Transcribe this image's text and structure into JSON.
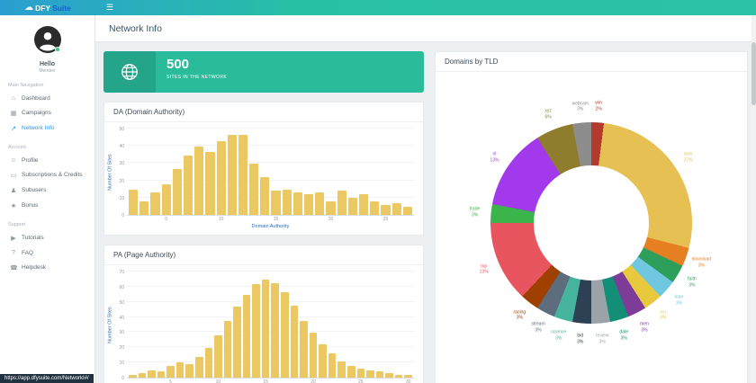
{
  "theme": {
    "teal": "#2abb9b",
    "bar_gold": "#ecc863",
    "active_blue": "#2196f3",
    "axis_blue": "#2a6db5"
  },
  "icons": {
    "cloud": "☁",
    "menu": "☰"
  },
  "topbar": {
    "brand_dfy": "DFY",
    "brand_suite": "Suite"
  },
  "page": {
    "title": "Network Info"
  },
  "statusbar": {
    "url": "https://app.dfysuite.com/NetworkI#/"
  },
  "sidebar": {
    "greeting": "Hello",
    "role": "Member",
    "sections": [
      {
        "label": "Main Navigation",
        "items": [
          {
            "label": "Dashboard",
            "icon": "⌂"
          },
          {
            "label": "Campaigns",
            "icon": "▦"
          },
          {
            "label": "Network Info",
            "icon": "↗"
          }
        ]
      },
      {
        "label": "Account",
        "items": [
          {
            "label": "Profile",
            "icon": "☺"
          },
          {
            "label": "Subscriptions & Credits",
            "icon": "▭"
          },
          {
            "label": "Subusers",
            "icon": "♟"
          },
          {
            "label": "Bonus",
            "icon": "★"
          }
        ]
      },
      {
        "label": "Support",
        "items": [
          {
            "label": "Tutorials",
            "icon": "▶"
          },
          {
            "label": "FAQ",
            "icon": "?"
          },
          {
            "label": "Helpdesk",
            "icon": "☎"
          }
        ]
      }
    ]
  },
  "stat_card": {
    "value": "500",
    "label": "SITES IN THE NETWORK"
  },
  "chart_data": [
    {
      "type": "bar",
      "title": "DA (Domain Authority)",
      "xlabel": "Domain Authority",
      "ylabel": "Number Of Sites",
      "ylim": [
        0,
        50
      ],
      "yticks": [
        0,
        10,
        20,
        30,
        40,
        50
      ],
      "xticks": [
        5,
        10,
        15,
        20,
        25
      ],
      "grid": true,
      "bar_color": "#ecc863",
      "x": [
        2,
        3,
        4,
        5,
        6,
        7,
        8,
        9,
        10,
        11,
        12,
        13,
        14,
        15,
        16,
        17,
        18,
        19,
        20,
        21,
        22,
        23,
        24,
        25,
        26,
        27
      ],
      "values": [
        15,
        8,
        13,
        18,
        27,
        35,
        40,
        37,
        43,
        47,
        47,
        30,
        22,
        14,
        15,
        13,
        12,
        13,
        8,
        14,
        10,
        12,
        8,
        6,
        7,
        5
      ]
    },
    {
      "type": "bar",
      "title": "PA (Page Authority)",
      "xlabel": "Page Authority",
      "ylabel": "Number Of Sites",
      "ylim": [
        0,
        70
      ],
      "yticks": [
        0,
        10,
        20,
        30,
        40,
        50,
        60,
        70
      ],
      "xticks": [
        5,
        10,
        15,
        20,
        25,
        30
      ],
      "grid": true,
      "bar_color": "#ecc863",
      "x": [
        1,
        2,
        3,
        4,
        5,
        6,
        7,
        8,
        9,
        10,
        11,
        12,
        13,
        14,
        15,
        16,
        17,
        18,
        19,
        20,
        21,
        22,
        23,
        24,
        25,
        26,
        27,
        28,
        29,
        30
      ],
      "values": [
        2,
        3,
        5,
        4,
        8,
        10,
        9,
        14,
        20,
        28,
        38,
        47,
        55,
        62,
        65,
        63,
        57,
        48,
        38,
        30,
        22,
        16,
        11,
        8,
        6,
        5,
        4,
        3,
        2,
        2
      ]
    },
    {
      "type": "donut",
      "title": "Domains by TLD",
      "legend_position": "outside",
      "segments": [
        {
          "label": "win",
          "value": 2,
          "color": "#b23b2e"
        },
        {
          "label": "com",
          "value": 27,
          "color": "#e6c052"
        },
        {
          "label": "download",
          "value": 3,
          "color": "#e67e22"
        },
        {
          "label": "faith",
          "value": 3,
          "color": "#2e9e5b"
        },
        {
          "label": "loan",
          "value": 3,
          "color": "#6fc7e0"
        },
        {
          "label": "icu",
          "value": 3,
          "color": "#e8c93e"
        },
        {
          "label": "men",
          "value": 3,
          "color": "#7d3c98"
        },
        {
          "label": "date",
          "value": 3,
          "color": "#148f77"
        },
        {
          "label": "review",
          "value": 3,
          "color": "#9aa3a8"
        },
        {
          "label": "bid",
          "value": 3,
          "color": "#2e4053"
        },
        {
          "label": "science",
          "value": 3,
          "color": "#45b39d"
        },
        {
          "label": "stream",
          "value": 3,
          "color": "#5d6d7e"
        },
        {
          "label": "racing",
          "value": 3,
          "color": "#a04000"
        },
        {
          "label": "top",
          "value": 13,
          "color": "#e8555f"
        },
        {
          "label": "trade",
          "value": 3,
          "color": "#3bb54a"
        },
        {
          "label": "nl",
          "value": 13,
          "color": "#a239ea"
        },
        {
          "label": "xyz",
          "value": 6,
          "color": "#8e7d2c"
        },
        {
          "label": "webcam",
          "value": 3,
          "color": "#8d8d8d"
        }
      ]
    }
  ]
}
